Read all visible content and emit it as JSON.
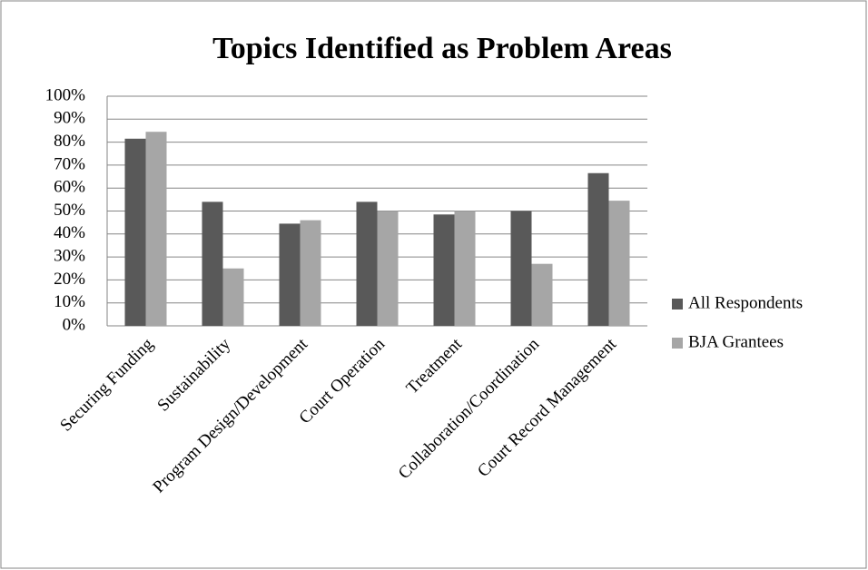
{
  "chart_data": {
    "type": "bar",
    "title": "Topics Identified as Problem Areas",
    "categories": [
      "Securing Funding",
      "Sustainability",
      "Program Design/Development",
      "Court Operation",
      "Treatment",
      "Collaboration/Coordination",
      "Court Record Management"
    ],
    "series": [
      {
        "name": "All Respondents",
        "color": "#595959",
        "values": [
          81.5,
          54,
          44.5,
          54,
          48.5,
          50,
          66.5
        ]
      },
      {
        "name": "BJA Grantees",
        "color": "#a6a6a6",
        "values": [
          84.5,
          25,
          46,
          50,
          50,
          27,
          54.5
        ]
      }
    ],
    "ylim": [
      0,
      100
    ],
    "yticks": [
      {
        "value": 0,
        "label": "0%"
      },
      {
        "value": 10,
        "label": "10%"
      },
      {
        "value": 20,
        "label": "20%"
      },
      {
        "value": 30,
        "label": "30%"
      },
      {
        "value": 40,
        "label": "40%"
      },
      {
        "value": 50,
        "label": "50%"
      },
      {
        "value": 60,
        "label": "60%"
      },
      {
        "value": 70,
        "label": "70%"
      },
      {
        "value": 80,
        "label": "80%"
      },
      {
        "value": 90,
        "label": "90%"
      },
      {
        "value": 100,
        "label": "100%"
      }
    ],
    "grid": true,
    "legend": "right"
  }
}
